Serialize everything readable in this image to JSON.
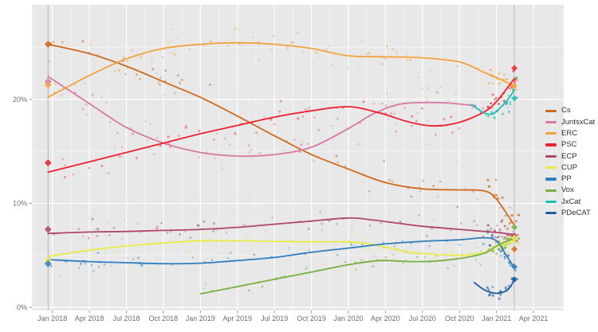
{
  "figure": {
    "background": "#ffffff",
    "panel_background": "#e8e8e8",
    "gridline_major_color": "#ffffff",
    "gridline_minor_color": "#f3f3f3",
    "election_line_color": "#b3b3b3",
    "axis_text_color": "#6e6e6e",
    "legend_text_color": "#2e2e2e"
  },
  "chart_data": {
    "type": "scatter",
    "subtype": "poll-scatter-with-loess-trend",
    "x_axis": {
      "tick_labels": [
        "Jan 2018",
        "Apr 2018",
        "Jul 2018",
        "Oct 2018",
        "Jan 2019",
        "Apr 2019",
        "Jul 2019",
        "Oct 2019",
        "Jan 2020",
        "Apr 2020",
        "Jul 2020",
        "Oct 2020",
        "Jan 2021",
        "Apr 2021"
      ],
      "tick_months": [
        0,
        3,
        6,
        9,
        12,
        15,
        18,
        21,
        24,
        27,
        30,
        33,
        36,
        39
      ],
      "range_months": [
        -1.66,
        41.45
      ]
    },
    "y_axis": {
      "tick_labels": [
        "0%",
        "10%",
        "20%"
      ],
      "tick_values": [
        0,
        10,
        20
      ],
      "range_pct": [
        -0.3,
        29.1
      ]
    },
    "legend": [
      "Cs",
      "JuntsxCat",
      "ERC",
      "PSC",
      "ECP",
      "CUP",
      "PP",
      "Vox",
      "JxCat",
      "PDeCAT"
    ],
    "series": [
      {
        "name": "Cs",
        "color": "#cf6a1e",
        "scatter_sd": 1.5,
        "trend": [
          [
            -0.35,
            25.3
          ],
          [
            3,
            24.4
          ],
          [
            6,
            23.2
          ],
          [
            9,
            21.7
          ],
          [
            12,
            20.2
          ],
          [
            15,
            18.4
          ],
          [
            18,
            16.5
          ],
          [
            21,
            14.7
          ],
          [
            24,
            13.3
          ],
          [
            27,
            12.0
          ],
          [
            30,
            11.4
          ],
          [
            33,
            11.3
          ],
          [
            35,
            11.2
          ],
          [
            36,
            10.4
          ],
          [
            37.45,
            7.9
          ]
        ]
      },
      {
        "name": "JuntsxCat",
        "color": "#d878a4",
        "scatter_sd": 1.5,
        "trend": [
          [
            -0.35,
            22.2
          ],
          [
            3,
            19.6
          ],
          [
            6,
            17.3
          ],
          [
            9,
            15.8
          ],
          [
            12,
            14.9
          ],
          [
            15,
            14.55
          ],
          [
            18,
            14.7
          ],
          [
            21,
            15.4
          ],
          [
            24,
            17.2
          ],
          [
            26,
            18.6
          ],
          [
            28,
            19.5
          ],
          [
            30,
            19.7
          ],
          [
            32,
            19.65
          ],
          [
            34.3,
            19.4
          ]
        ]
      },
      {
        "name": "ERC",
        "color": "#f2a33c",
        "scatter_sd": 1.4,
        "trend": [
          [
            -0.35,
            20.2
          ],
          [
            3,
            22.3
          ],
          [
            6,
            23.9
          ],
          [
            9,
            24.9
          ],
          [
            12,
            25.3
          ],
          [
            15,
            25.45
          ],
          [
            18,
            25.3
          ],
          [
            21,
            24.9
          ],
          [
            24,
            24.2
          ],
          [
            27,
            24.1
          ],
          [
            30,
            24.0
          ],
          [
            33,
            23.6
          ],
          [
            35,
            22.6
          ],
          [
            36,
            22.1
          ],
          [
            37.45,
            21.3
          ]
        ]
      },
      {
        "name": "PSC",
        "color": "#ee2030",
        "scatter_sd": 1.4,
        "trend": [
          [
            -0.35,
            13.0
          ],
          [
            3,
            14.0
          ],
          [
            6,
            14.9
          ],
          [
            9,
            15.8
          ],
          [
            12,
            16.7
          ],
          [
            15,
            17.5
          ],
          [
            18,
            18.3
          ],
          [
            21,
            18.9
          ],
          [
            24,
            19.3
          ],
          [
            26.5,
            18.7
          ],
          [
            29,
            17.8
          ],
          [
            31,
            17.45
          ],
          [
            33,
            17.8
          ],
          [
            35,
            18.8
          ],
          [
            36,
            19.8
          ],
          [
            37.45,
            22.0
          ]
        ]
      },
      {
        "name": "ECP",
        "color": "#b04768",
        "scatter_sd": 0.9,
        "trend": [
          [
            -0.35,
            7.1
          ],
          [
            3,
            7.25
          ],
          [
            6,
            7.3
          ],
          [
            9,
            7.4
          ],
          [
            12,
            7.5
          ],
          [
            15,
            7.7
          ],
          [
            18,
            8.0
          ],
          [
            21,
            8.3
          ],
          [
            24,
            8.6
          ],
          [
            26,
            8.4
          ],
          [
            28,
            8.1
          ],
          [
            30,
            7.8
          ],
          [
            33,
            7.5
          ],
          [
            36,
            7.2
          ],
          [
            37.45,
            7.0
          ]
        ]
      },
      {
        "name": "CUP",
        "color": "#ecea47",
        "scatter_sd": 0.8,
        "trend": [
          [
            -0.35,
            4.9
          ],
          [
            3,
            5.5
          ],
          [
            6,
            5.9
          ],
          [
            9,
            6.2
          ],
          [
            12,
            6.4
          ],
          [
            15,
            6.4
          ],
          [
            18,
            6.35
          ],
          [
            21,
            6.3
          ],
          [
            24,
            6.3
          ],
          [
            25.5,
            6.15
          ],
          [
            27,
            5.8
          ],
          [
            29,
            5.3
          ],
          [
            31,
            5.1
          ],
          [
            33,
            5.0
          ],
          [
            35,
            5.3
          ],
          [
            36,
            5.8
          ],
          [
            37.45,
            6.4
          ]
        ]
      },
      {
        "name": "PP",
        "color": "#2f7ec0",
        "scatter_sd": 0.8,
        "trend": [
          [
            -0.35,
            4.6
          ],
          [
            3,
            4.4
          ],
          [
            6,
            4.3
          ],
          [
            9,
            4.2
          ],
          [
            12,
            4.25
          ],
          [
            15,
            4.5
          ],
          [
            18,
            4.8
          ],
          [
            21,
            5.3
          ],
          [
            24,
            5.7
          ],
          [
            27,
            6.1
          ],
          [
            30,
            6.35
          ],
          [
            33,
            6.5
          ],
          [
            35,
            6.7
          ],
          [
            36,
            6.4
          ],
          [
            36.7,
            5.2
          ],
          [
            37.45,
            3.8
          ]
        ]
      },
      {
        "name": "Vox",
        "color": "#77b13d",
        "scatter_sd": 0.8,
        "trend": [
          [
            12,
            1.3
          ],
          [
            15,
            2.0
          ],
          [
            18,
            2.7
          ],
          [
            21,
            3.4
          ],
          [
            24,
            4.1
          ],
          [
            26.5,
            4.5
          ],
          [
            29,
            4.4
          ],
          [
            31,
            4.45
          ],
          [
            33,
            4.7
          ],
          [
            35,
            5.2
          ],
          [
            36,
            5.9
          ],
          [
            36.7,
            6.3
          ],
          [
            37.45,
            6.6
          ]
        ]
      },
      {
        "name": "JxCat",
        "color": "#1fbfb2",
        "scatter_sd": 1.0,
        "trend": [
          [
            34,
            19.5
          ],
          [
            35,
            18.7
          ],
          [
            35.7,
            18.6
          ],
          [
            36.3,
            19.2
          ],
          [
            37,
            20.1
          ],
          [
            37.45,
            20.9
          ]
        ]
      },
      {
        "name": "PDeCAT",
        "color": "#1d5f9e",
        "scatter_sd": 0.7,
        "trend": [
          [
            34.2,
            2.4
          ],
          [
            35,
            1.7
          ],
          [
            36,
            1.35
          ],
          [
            36.8,
            1.6
          ],
          [
            37.2,
            2.1
          ],
          [
            37.45,
            2.8
          ]
        ]
      }
    ],
    "election_markers": [
      {
        "m": -0.35,
        "results": [
          [
            "Cs",
            25.3
          ],
          [
            "JuntsxCat",
            21.7
          ],
          [
            "ERC",
            21.4
          ],
          [
            "PSC",
            13.9
          ],
          [
            "ECP",
            7.5
          ],
          [
            "CUP",
            4.5
          ],
          [
            "PP",
            4.2
          ]
        ]
      },
      {
        "m": 37.45,
        "results": [
          [
            "PSC",
            23.0
          ],
          [
            "ERC",
            21.3
          ],
          [
            "JxCat",
            20.1
          ],
          [
            "Vox",
            7.7
          ],
          [
            "ECP",
            6.9
          ],
          [
            "CUP",
            6.7
          ],
          [
            "Cs",
            5.6
          ],
          [
            "PP",
            3.9
          ],
          [
            "PDeCAT",
            2.7
          ]
        ]
      }
    ],
    "scatter_style": {
      "seed": 7,
      "points_per_38_months": 55,
      "cluster_extra_points": 16,
      "cluster_from_m": 35.3,
      "cluster_to_m": 37.9,
      "gray_noise_points": 55,
      "gray_color": "#9aa0a8"
    }
  }
}
